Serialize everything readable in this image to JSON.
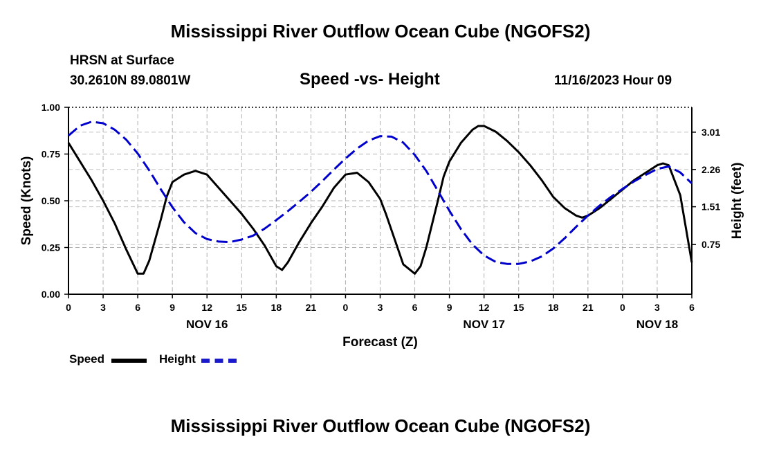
{
  "page": {
    "title_top": "Mississippi River Outflow Ocean Cube (NGOFS2)",
    "title_bottom": "Mississippi River Outflow Ocean Cube (NGOFS2)",
    "station": "HRSN at Surface",
    "coords": "30.2610N  89.0801W",
    "chart_title": "Speed -vs- Height",
    "date": "11/16/2023 Hour 09"
  },
  "legend": {
    "speed_label": "Speed",
    "height_label": "Height"
  },
  "chart_data": {
    "type": "line",
    "title": "Speed -vs- Height",
    "xlabel": "Forecast (Z)",
    "ylabel_left": "Speed (Knots)",
    "ylabel_right": "Height (feet)",
    "x_range_hours": [
      0,
      54
    ],
    "x_ticks": [
      {
        "h": 0,
        "label": "0"
      },
      {
        "h": 3,
        "label": "3"
      },
      {
        "h": 6,
        "label": "6"
      },
      {
        "h": 9,
        "label": "9"
      },
      {
        "h": 12,
        "label": "12"
      },
      {
        "h": 15,
        "label": "15"
      },
      {
        "h": 18,
        "label": "18"
      },
      {
        "h": 21,
        "label": "21"
      },
      {
        "h": 24,
        "label": "0"
      },
      {
        "h": 27,
        "label": "3"
      },
      {
        "h": 30,
        "label": "6"
      },
      {
        "h": 33,
        "label": "9"
      },
      {
        "h": 36,
        "label": "12"
      },
      {
        "h": 39,
        "label": "15"
      },
      {
        "h": 42,
        "label": "18"
      },
      {
        "h": 45,
        "label": "21"
      },
      {
        "h": 48,
        "label": "0"
      },
      {
        "h": 51,
        "label": "3"
      },
      {
        "h": 54,
        "label": "6"
      }
    ],
    "day_labels": [
      {
        "h": 12,
        "label": "NOV 16"
      },
      {
        "h": 36,
        "label": "NOV 17"
      },
      {
        "h": 51,
        "label": "NOV 18"
      }
    ],
    "ylim_left": [
      0,
      1
    ],
    "yticks_left": [
      {
        "v": 0.0,
        "label": "0.00"
      },
      {
        "v": 0.25,
        "label": "0.25"
      },
      {
        "v": 0.5,
        "label": "0.50"
      },
      {
        "v": 0.75,
        "label": "0.75"
      },
      {
        "v": 1.0,
        "label": "1.00"
      }
    ],
    "ylim_right": [
      -0.25,
      3.51
    ],
    "yticks_right": [
      {
        "v": 0.75,
        "label": "0.75"
      },
      {
        "v": 1.51,
        "label": "1.51"
      },
      {
        "v": 2.26,
        "label": "2.26"
      },
      {
        "v": 3.01,
        "label": "3.01"
      }
    ],
    "series": [
      {
        "name": "Speed",
        "axis": "left",
        "color": "#000000",
        "style": "solid",
        "points": [
          [
            0,
            0.81
          ],
          [
            1,
            0.71
          ],
          [
            2,
            0.61
          ],
          [
            3,
            0.5
          ],
          [
            4,
            0.38
          ],
          [
            5,
            0.24
          ],
          [
            6,
            0.11
          ],
          [
            6.5,
            0.11
          ],
          [
            7,
            0.18
          ],
          [
            8,
            0.4
          ],
          [
            8.5,
            0.52
          ],
          [
            9,
            0.6
          ],
          [
            10,
            0.64
          ],
          [
            11,
            0.66
          ],
          [
            12,
            0.64
          ],
          [
            13,
            0.57
          ],
          [
            14,
            0.5
          ],
          [
            15,
            0.43
          ],
          [
            16,
            0.35
          ],
          [
            17,
            0.26
          ],
          [
            18,
            0.15
          ],
          [
            18.5,
            0.13
          ],
          [
            19,
            0.17
          ],
          [
            20,
            0.28
          ],
          [
            21,
            0.38
          ],
          [
            22,
            0.47
          ],
          [
            23,
            0.57
          ],
          [
            24,
            0.64
          ],
          [
            25,
            0.65
          ],
          [
            26,
            0.6
          ],
          [
            27,
            0.51
          ],
          [
            27.5,
            0.43
          ],
          [
            28,
            0.34
          ],
          [
            29,
            0.16
          ],
          [
            30,
            0.11
          ],
          [
            30.5,
            0.15
          ],
          [
            31,
            0.25
          ],
          [
            32,
            0.5
          ],
          [
            32.5,
            0.63
          ],
          [
            33,
            0.71
          ],
          [
            34,
            0.81
          ],
          [
            35,
            0.88
          ],
          [
            35.5,
            0.9
          ],
          [
            36,
            0.9
          ],
          [
            37,
            0.87
          ],
          [
            38,
            0.82
          ],
          [
            39,
            0.76
          ],
          [
            40,
            0.69
          ],
          [
            41,
            0.61
          ],
          [
            42,
            0.52
          ],
          [
            43,
            0.46
          ],
          [
            44,
            0.42
          ],
          [
            44.5,
            0.41
          ],
          [
            45,
            0.42
          ],
          [
            46,
            0.46
          ],
          [
            47,
            0.51
          ],
          [
            48,
            0.56
          ],
          [
            49,
            0.61
          ],
          [
            50,
            0.65
          ],
          [
            51,
            0.69
          ],
          [
            51.5,
            0.7
          ],
          [
            52,
            0.69
          ],
          [
            53,
            0.53
          ],
          [
            54,
            0.17
          ]
        ]
      },
      {
        "name": "Height",
        "axis": "right",
        "color": "#0000cc",
        "style": "dashed",
        "points": [
          [
            0,
            2.94
          ],
          [
            1,
            3.14
          ],
          [
            2,
            3.22
          ],
          [
            3,
            3.19
          ],
          [
            4,
            3.06
          ],
          [
            5,
            2.86
          ],
          [
            6,
            2.58
          ],
          [
            7,
            2.24
          ],
          [
            8,
            1.86
          ],
          [
            9,
            1.5
          ],
          [
            10,
            1.2
          ],
          [
            11,
            0.98
          ],
          [
            12,
            0.86
          ],
          [
            13,
            0.81
          ],
          [
            14,
            0.8
          ],
          [
            15,
            0.85
          ],
          [
            16,
            0.93
          ],
          [
            17,
            1.07
          ],
          [
            18,
            1.24
          ],
          [
            19,
            1.42
          ],
          [
            20,
            1.61
          ],
          [
            21,
            1.81
          ],
          [
            22,
            2.03
          ],
          [
            23,
            2.26
          ],
          [
            24,
            2.48
          ],
          [
            25,
            2.68
          ],
          [
            26,
            2.84
          ],
          [
            27,
            2.93
          ],
          [
            28,
            2.92
          ],
          [
            29,
            2.8
          ],
          [
            30,
            2.55
          ],
          [
            31,
            2.23
          ],
          [
            32,
            1.83
          ],
          [
            33,
            1.43
          ],
          [
            34,
            1.06
          ],
          [
            35,
            0.75
          ],
          [
            36,
            0.53
          ],
          [
            37,
            0.4
          ],
          [
            38,
            0.36
          ],
          [
            39,
            0.36
          ],
          [
            40,
            0.41
          ],
          [
            41,
            0.51
          ],
          [
            42,
            0.67
          ],
          [
            43,
            0.88
          ],
          [
            44,
            1.11
          ],
          [
            45,
            1.33
          ],
          [
            46,
            1.53
          ],
          [
            47,
            1.71
          ],
          [
            48,
            1.87
          ],
          [
            49,
            2.02
          ],
          [
            50,
            2.15
          ],
          [
            51,
            2.27
          ],
          [
            52,
            2.32
          ],
          [
            53,
            2.2
          ],
          [
            54,
            1.98
          ]
        ]
      }
    ]
  }
}
